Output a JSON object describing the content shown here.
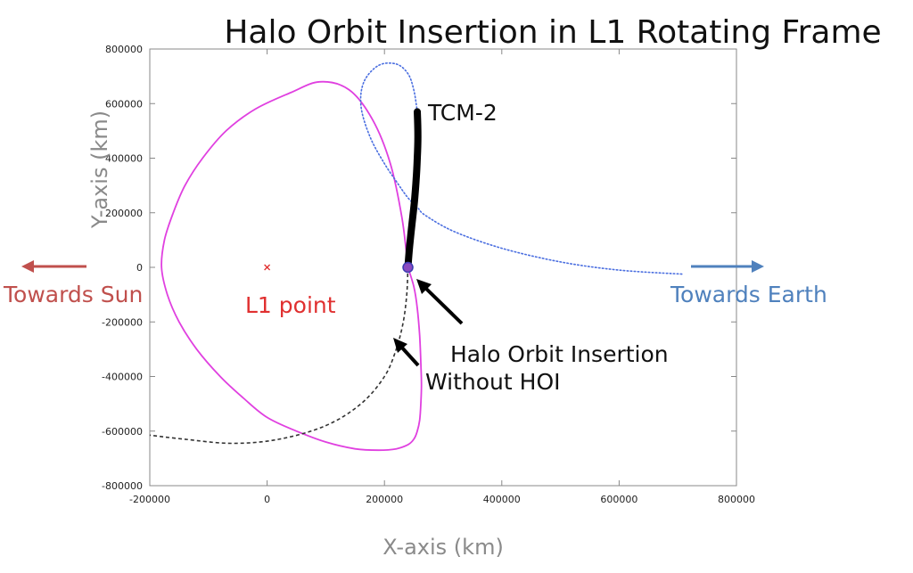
{
  "chart_data": {
    "type": "line",
    "title": "Halo Orbit Insertion in L1 Rotating Frame",
    "xlabel": "X-axis (km)",
    "ylabel": "Y-axis (km)",
    "xlim": [
      -200000,
      800000
    ],
    "ylim": [
      -800000,
      800000
    ],
    "x_ticks": [
      -200000,
      0,
      200000,
      400000,
      600000,
      800000
    ],
    "y_ticks": [
      -800000,
      -600000,
      -400000,
      -200000,
      0,
      200000,
      400000,
      600000,
      800000
    ],
    "grid": false,
    "series": [
      {
        "style": "solid",
        "color": "#e040e0",
        "x": [
          240000,
          250000,
          256000,
          260000,
          262000,
          263000,
          262000,
          260000,
          256000,
          250000,
          240000,
          220000,
          190000,
          150000,
          100000,
          50000,
          0,
          -40000,
          -80000,
          -120000,
          -150000,
          -170000,
          -180000,
          -175000,
          -160000,
          -140000,
          -110000,
          -70000,
          -20000,
          40000,
          90000,
          140000,
          180000,
          210000,
          230000,
          240000
        ],
        "y": [
          0,
          -70000,
          -150000,
          -250000,
          -350000,
          -430000,
          -500000,
          -560000,
          -600000,
          -630000,
          -650000,
          -665000,
          -670000,
          -665000,
          -640000,
          -600000,
          -550000,
          -480000,
          -400000,
          -300000,
          -200000,
          -100000,
          0,
          100000,
          200000,
          300000,
          400000,
          500000,
          580000,
          640000,
          680000,
          650000,
          540000,
          380000,
          180000,
          0
        ]
      },
      {
        "style": "dotted",
        "color": "#4a6ee0",
        "x": [
          256000,
          250000,
          240000,
          220000,
          190000,
          165000,
          160000,
          175000,
          200000,
          225000,
          240000,
          256000,
          270000,
          320000,
          400000,
          500000,
          600000,
          710000
        ],
        "y": [
          570000,
          650000,
          710000,
          745000,
          740000,
          680000,
          590000,
          480000,
          380000,
          300000,
          255000,
          220000,
          190000,
          130000,
          70000,
          20000,
          -10000,
          -25000
        ]
      },
      {
        "style": "dashed",
        "color": "#333333",
        "x": [
          240000,
          238000,
          232000,
          220000,
          200000,
          160000,
          100000,
          20000,
          -60000,
          -140000,
          -200000
        ],
        "y": [
          0,
          -100000,
          -200000,
          -300000,
          -400000,
          -500000,
          -580000,
          -630000,
          -645000,
          -630000,
          -615000
        ]
      },
      {
        "style": "thick",
        "color": "#000000",
        "x": [
          240000,
          243000,
          247000,
          251000,
          254000,
          256000,
          257000,
          256000
        ],
        "y": [
          0,
          80000,
          160000,
          240000,
          320000,
          400000,
          480000,
          570000
        ]
      }
    ],
    "markers": [
      {
        "name": "L1",
        "x": 0,
        "y": 0,
        "symbol": "x",
        "color": "#e03030"
      },
      {
        "name": "HOI",
        "x": 240000,
        "y": 0,
        "symbol": "circle",
        "color": "#8a4ac0"
      }
    ],
    "annotations": {
      "tcm2": "TCM-2",
      "l1_point": "L1 point",
      "hoi": "Halo Orbit Insertion",
      "without_hoi": "Without HOI",
      "towards_sun": "Towards Sun",
      "towards_earth": "Towards Earth"
    },
    "colors": {
      "sun": "#c0504d",
      "earth": "#4f81bd",
      "l1_label": "#e03030"
    }
  }
}
